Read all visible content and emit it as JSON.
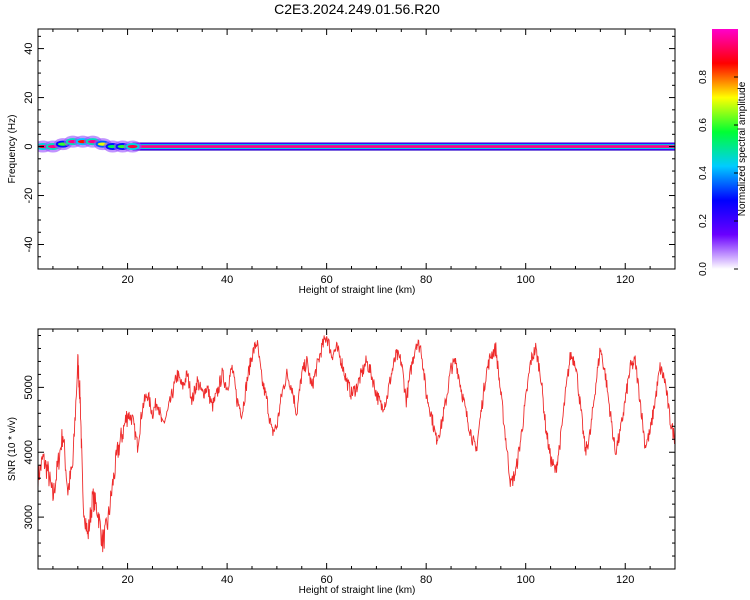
{
  "figure": {
    "title": "C2E3.2024.249.01.56.R20"
  },
  "colorbar": {
    "label": "Normalized spectral amplitude",
    "ticks": [
      0.0,
      0.2,
      0.4,
      0.6,
      0.8
    ],
    "tick_labels": [
      "0.0",
      "0.2",
      "0.4",
      "0.6",
      "0.8"
    ],
    "range": [
      0,
      1
    ],
    "colors": [
      "#ffffff",
      "#6a00ff",
      "#0000ff",
      "#00ccff",
      "#00ff33",
      "#ffff00",
      "#ff0000",
      "#ff00cc"
    ]
  },
  "chart_data": [
    {
      "type": "heatmap",
      "xlabel": "Height of straight line (km)",
      "ylabel": "Frequency (Hz)",
      "xlim": [
        2,
        130
      ],
      "ylim": [
        -50,
        48
      ],
      "xticks": [
        20,
        40,
        60,
        80,
        100,
        120
      ],
      "yticks": [
        -40,
        -20,
        0,
        20,
        40
      ],
      "band": {
        "note_frequency": 0,
        "cells": [
          {
            "x": 3,
            "f": 0,
            "amp": 0.9
          },
          {
            "x": 5,
            "f": 0,
            "amp": 0.95
          },
          {
            "x": 7,
            "f": 1,
            "amp": 0.6
          },
          {
            "x": 9,
            "f": 2,
            "amp": 0.95
          },
          {
            "x": 11,
            "f": 2,
            "amp": 0.85
          },
          {
            "x": 13,
            "f": 2,
            "amp": 0.95
          },
          {
            "x": 15,
            "f": 1,
            "amp": 0.7
          },
          {
            "x": 17,
            "f": 0,
            "amp": 0.55
          },
          {
            "x": 19,
            "f": 0,
            "amp": 0.6
          },
          {
            "x": 21,
            "f": 0,
            "amp": 0.9
          }
        ],
        "steady_amp": 0.95,
        "steady_from": 22,
        "steady_to": 130
      }
    },
    {
      "type": "line",
      "xlabel": "Height of straight line (km)",
      "ylabel": "SNR (10 * v/v)",
      "xlim": [
        2,
        130
      ],
      "ylim": [
        2200,
        5900
      ],
      "xticks": [
        20,
        40,
        60,
        80,
        100,
        120
      ],
      "yticks": [
        3000,
        4000,
        5000
      ],
      "series": [
        {
          "color": "#ee2b2b",
          "x": [
            2,
            3,
            4,
            5,
            6,
            7,
            8,
            9,
            10,
            10.5,
            11,
            12,
            13,
            14,
            15,
            16,
            17,
            18,
            19,
            20,
            21,
            22,
            23,
            24,
            25,
            26,
            27,
            28,
            29,
            30,
            31,
            32,
            33,
            34,
            35,
            36,
            37,
            38,
            39,
            40,
            41,
            42,
            43,
            44,
            45,
            46,
            47,
            48,
            49,
            50,
            51,
            52,
            53,
            54,
            55,
            56,
            57,
            58,
            59,
            60,
            61,
            62,
            63,
            64,
            65,
            66,
            67,
            68,
            69,
            70,
            71,
            72,
            73,
            74,
            75,
            76,
            77,
            78,
            79,
            80,
            81,
            82,
            83,
            84,
            85,
            86,
            87,
            88,
            89,
            90,
            91,
            92,
            93,
            94,
            95,
            96,
            97,
            98,
            99,
            100,
            101,
            102,
            103,
            104,
            105,
            106,
            107,
            108,
            109,
            110,
            111,
            112,
            113,
            114,
            115,
            116,
            117,
            118,
            119,
            120,
            121,
            122,
            123,
            124,
            125,
            126,
            127,
            128,
            129,
            130
          ],
          "y": [
            3600,
            3900,
            3700,
            3300,
            3800,
            4300,
            3400,
            3800,
            5400,
            4800,
            3300,
            2700,
            3300,
            3100,
            2600,
            2900,
            3500,
            4000,
            4300,
            4600,
            4500,
            4100,
            4700,
            4900,
            4600,
            4800,
            4400,
            4600,
            4900,
            5200,
            5000,
            5200,
            4800,
            5100,
            4900,
            5000,
            4700,
            4900,
            5200,
            5000,
            5300,
            4800,
            4600,
            5100,
            5500,
            5700,
            5100,
            4800,
            4300,
            4400,
            4900,
            5200,
            5000,
            4600,
            5200,
            5400,
            5000,
            5300,
            5600,
            5800,
            5500,
            5600,
            5400,
            5100,
            4900,
            5000,
            5200,
            5400,
            5200,
            4900,
            4700,
            4800,
            5200,
            5500,
            5400,
            4800,
            5300,
            5700,
            5600,
            4900,
            4600,
            4200,
            4400,
            4800,
            5300,
            5400,
            5000,
            4600,
            4300,
            4000,
            4600,
            5200,
            5500,
            5600,
            4900,
            4200,
            3500,
            3700,
            4200,
            4800,
            5400,
            5600,
            5200,
            4400,
            3900,
            3700,
            4200,
            4900,
            5500,
            5400,
            4700,
            4000,
            4300,
            5000,
            5600,
            5200,
            4600,
            4000,
            4300,
            4800,
            5300,
            5400,
            4800,
            4100,
            4300,
            4800,
            5300,
            5100,
            4500,
            4200
          ]
        }
      ]
    }
  ]
}
